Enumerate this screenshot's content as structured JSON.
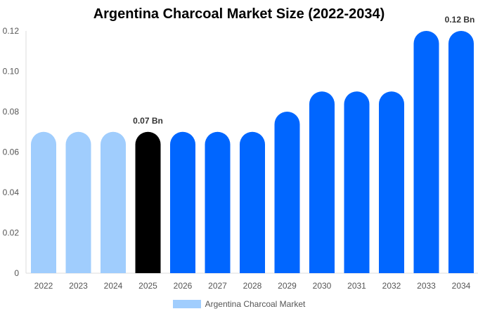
{
  "chart_data": {
    "type": "bar",
    "title": "Argentina Charcoal Market Size (2022-2034)",
    "xlabel": "",
    "ylabel": "",
    "ylim": [
      0,
      0.12
    ],
    "yticks": [
      "0",
      "0.02",
      "0.04",
      "0.06",
      "0.08",
      "0.10",
      "0.12"
    ],
    "categories": [
      "2022",
      "2023",
      "2024",
      "2025",
      "2026",
      "2027",
      "2028",
      "2029",
      "2030",
      "2031",
      "2032",
      "2033",
      "2034"
    ],
    "series": [
      {
        "name": "Argentina Charcoal Market",
        "values": [
          0.07,
          0.07,
          0.07,
          0.07,
          0.07,
          0.07,
          0.07,
          0.08,
          0.09,
          0.09,
          0.09,
          0.12,
          0.12
        ]
      }
    ],
    "bar_colors": [
      "#a0cdfd",
      "#a0cdfd",
      "#a0cdfd",
      "#000000",
      "#0066ff",
      "#0066ff",
      "#0066ff",
      "#0066ff",
      "#0066ff",
      "#0066ff",
      "#0066ff",
      "#0066ff",
      "#0066ff"
    ],
    "data_labels": [
      {
        "index": 3,
        "text": "0.07 Bn"
      },
      {
        "index": 12,
        "text": "0.12 Bn"
      }
    ],
    "legend": {
      "label": "Argentina Charcoal Market",
      "color": "#a0cdfd",
      "placement": "bottom"
    },
    "grid": false
  }
}
